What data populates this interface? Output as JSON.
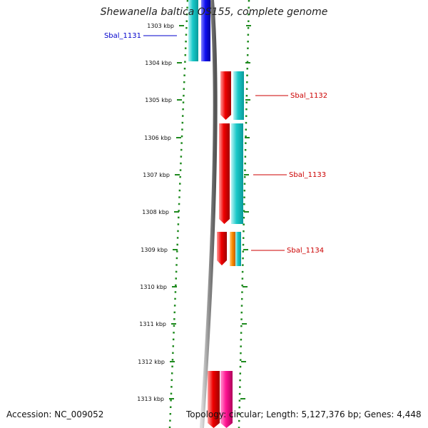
{
  "title": "Shewanella baltica OS155, complete genome",
  "footer": {
    "accession": "Accession: NC_009052",
    "summary": "Topology: circular; Length: 5,127,376 bp; Genes: 4,448"
  },
  "colors": {
    "axis_dots": "#1e8a1e",
    "backbone": "#808080",
    "cyan": "#18c8c8",
    "blue": "#1010f0",
    "red": "#f00000",
    "orange": "#ff8c00",
    "magenta": "#ff1493",
    "label_forward": "#0000cc",
    "label_reverse": "#cc0000"
  },
  "ticks": [
    {
      "label": "1303 kbp"
    },
    {
      "label": "1304 kbp"
    },
    {
      "label": "1305 kbp"
    },
    {
      "label": "1306 kbp"
    },
    {
      "label": "1307 kbp"
    },
    {
      "label": "1308 kbp"
    },
    {
      "label": "1309 kbp"
    },
    {
      "label": "1310 kbp"
    },
    {
      "label": "1311 kbp"
    },
    {
      "label": "1312 kbp"
    },
    {
      "label": "1313 kbp"
    }
  ],
  "gene_labels": [
    {
      "name": "Sbal_1131",
      "strand": "forward"
    },
    {
      "name": "Sbal_1132",
      "strand": "reverse"
    },
    {
      "name": "Sbal_1133",
      "strand": "reverse"
    },
    {
      "name": "Sbal_1134",
      "strand": "reverse"
    }
  ]
}
